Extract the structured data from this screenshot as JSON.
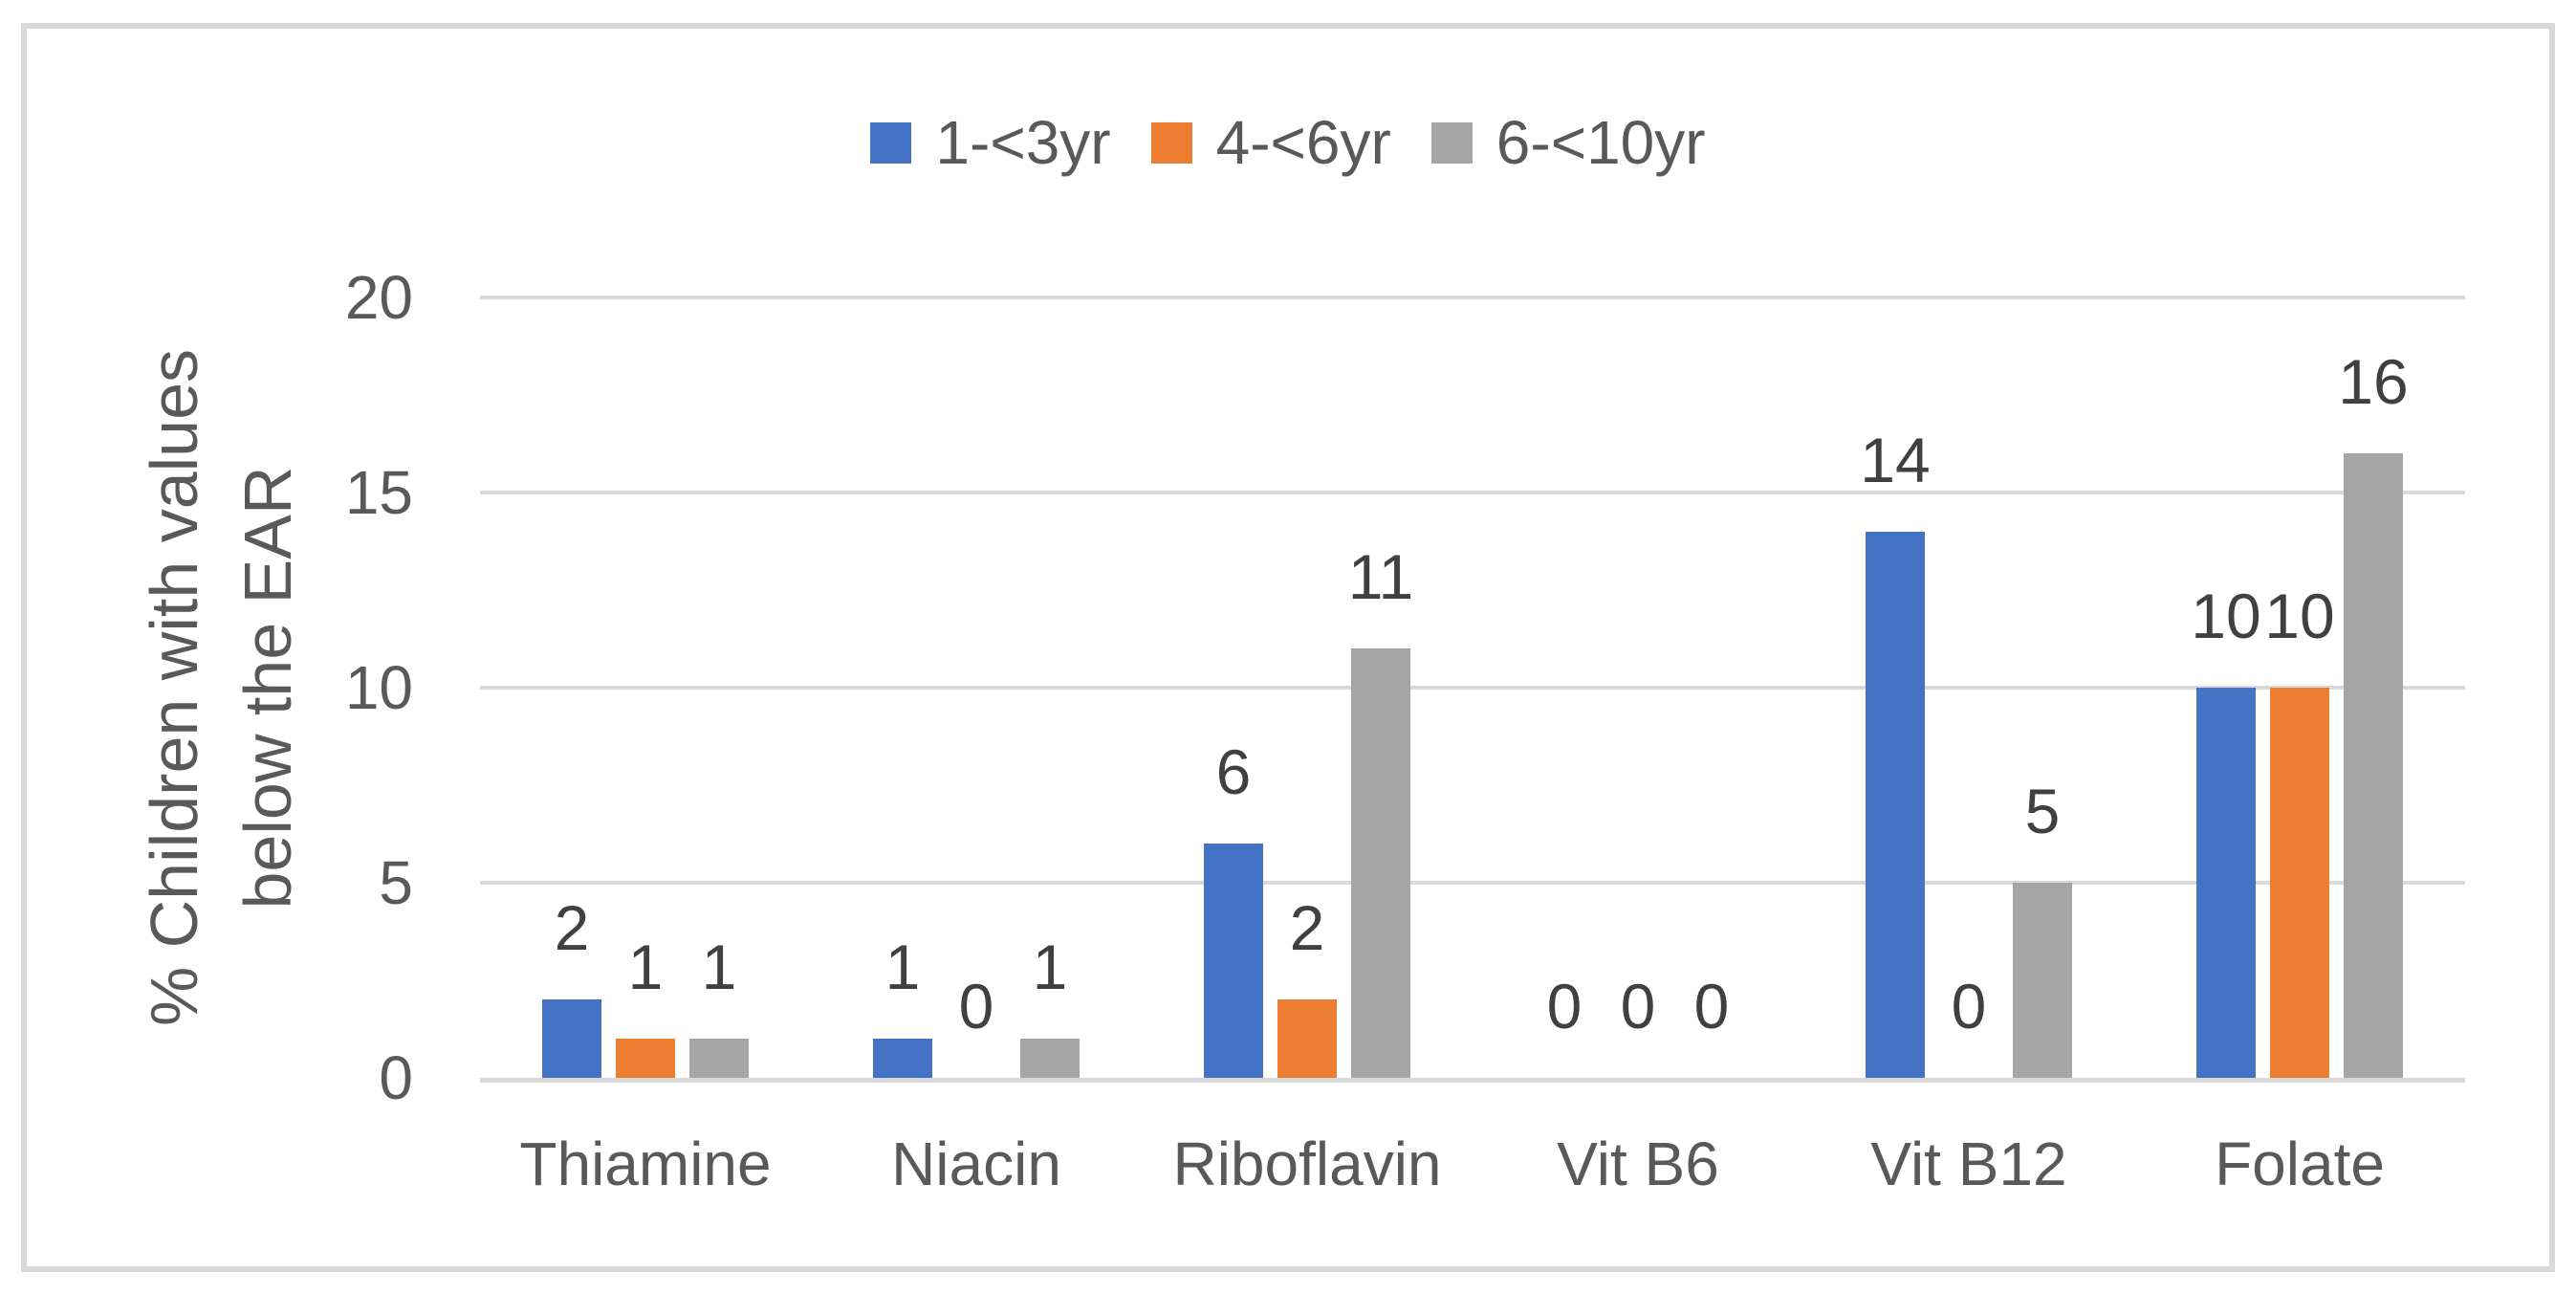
{
  "chart_data": {
    "type": "bar",
    "title": "",
    "categories": [
      "Thiamine",
      "Niacin",
      "Riboflavin",
      "Vit B6",
      "Vit B12",
      "Folate"
    ],
    "series": [
      {
        "name": "1-<3yr",
        "color": "#4472C4",
        "values": [
          2,
          1,
          6,
          0,
          14,
          10
        ]
      },
      {
        "name": "4-<6yr",
        "color": "#ED7D31",
        "values": [
          1,
          0,
          2,
          0,
          0,
          10
        ]
      },
      {
        "name": "6-<10yr",
        "color": "#A5A5A5",
        "values": [
          1,
          1,
          11,
          0,
          5,
          16
        ]
      }
    ],
    "ylabel_lines": [
      "% Children with values",
      "below the EAR"
    ],
    "yticks": [
      0,
      5,
      10,
      15,
      20
    ],
    "ylim": [
      0,
      20
    ],
    "grid": true,
    "legend_position": "top",
    "data_labels": true
  },
  "colors": {
    "background": "#FFFFFF",
    "frame_border": "#D9D9D9",
    "gridline": "#D9D9D9",
    "axis_text": "#595959",
    "data_label_text": "#404040",
    "series_blue": "#4472C4",
    "series_orange": "#ED7D31",
    "series_gray": "#A5A5A5"
  }
}
